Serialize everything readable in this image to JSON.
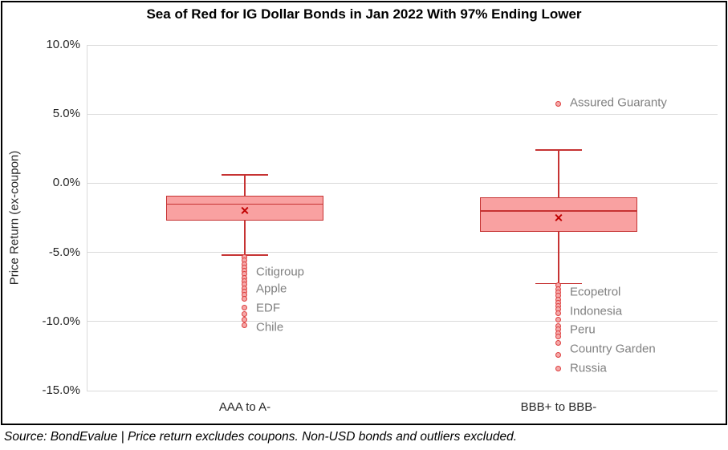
{
  "title": "Sea of Red for IG Dollar Bonds in Jan 2022 With 97% Ending Lower",
  "y_axis": {
    "label": "Price Return (ex-coupon)",
    "tick_labels": [
      "10.0%",
      "5.0%",
      "0.0%",
      "-5.0%",
      "-10.0%",
      "-15.0%"
    ]
  },
  "footer": "Source: BondEvalue | Price return excludes coupons. Non-USD bonds and outliers excluded.",
  "chart_data": {
    "type": "boxplot",
    "title": "Sea of Red for IG Dollar Bonds in Jan 2022 With 97% Ending Lower",
    "xlabel": "",
    "ylabel": "Price Return (ex-coupon)",
    "ylim": [
      -15,
      10
    ],
    "tick_values": [
      10,
      5,
      0,
      -5,
      -10,
      -15
    ],
    "grid": true,
    "categories": [
      "AAA to A-",
      "BBB+ to BBB-"
    ],
    "colors": {
      "box_fill": "#F9A1A1",
      "box_stroke": "#C63333",
      "mean_marker": "#C00000",
      "dot_fill": "#F4A9A9",
      "dot_stroke": "#DE3D3D",
      "gridline": "#D9D9D9",
      "outlier_label": "#808080"
    },
    "series": [
      {
        "category": "AAA to A-",
        "whisker_high": 0.6,
        "q3": -0.9,
        "median": -1.5,
        "mean": -2.0,
        "q1": -2.7,
        "whisker_low": -5.2,
        "outliers_high": [],
        "outliers_low": [
          -5.35,
          -5.6,
          -5.85,
          -6.1,
          -6.35,
          -6.6,
          -6.85,
          -7.1,
          -7.35,
          -7.6,
          -7.85,
          -8.1,
          -8.35,
          -9.0,
          -9.45,
          -9.85,
          -10.3
        ],
        "outlier_labels": [
          {
            "text": "Citigroup",
            "value": -6.45
          },
          {
            "text": "Apple",
            "value": -7.7
          },
          {
            "text": "EDF",
            "value": -9.1
          },
          {
            "text": "Chile",
            "value": -10.45
          }
        ]
      },
      {
        "category": "BBB+ to BBB-",
        "whisker_high": 2.4,
        "q3": -1.0,
        "median": -2.0,
        "mean": -2.5,
        "q1": -3.5,
        "whisker_low": -7.25,
        "outliers_high": [
          5.75
        ],
        "outliers_low": [
          -7.4,
          -7.65,
          -7.9,
          -8.15,
          -8.4,
          -8.65,
          -8.9,
          -9.15,
          -9.4,
          -9.85,
          -10.35,
          -10.6,
          -10.85,
          -11.1,
          -11.55,
          -12.45,
          -13.4
        ],
        "outlier_labels": [
          {
            "text": "Assured Guaranty",
            "value": 5.75
          },
          {
            "text": "Ecopetrol",
            "value": -7.95
          },
          {
            "text": "Indonesia",
            "value": -9.3
          },
          {
            "text": "Peru",
            "value": -10.65
          },
          {
            "text": "Country Garden",
            "value": -12.05
          },
          {
            "text": "Russia",
            "value": -13.45
          }
        ]
      }
    ]
  }
}
